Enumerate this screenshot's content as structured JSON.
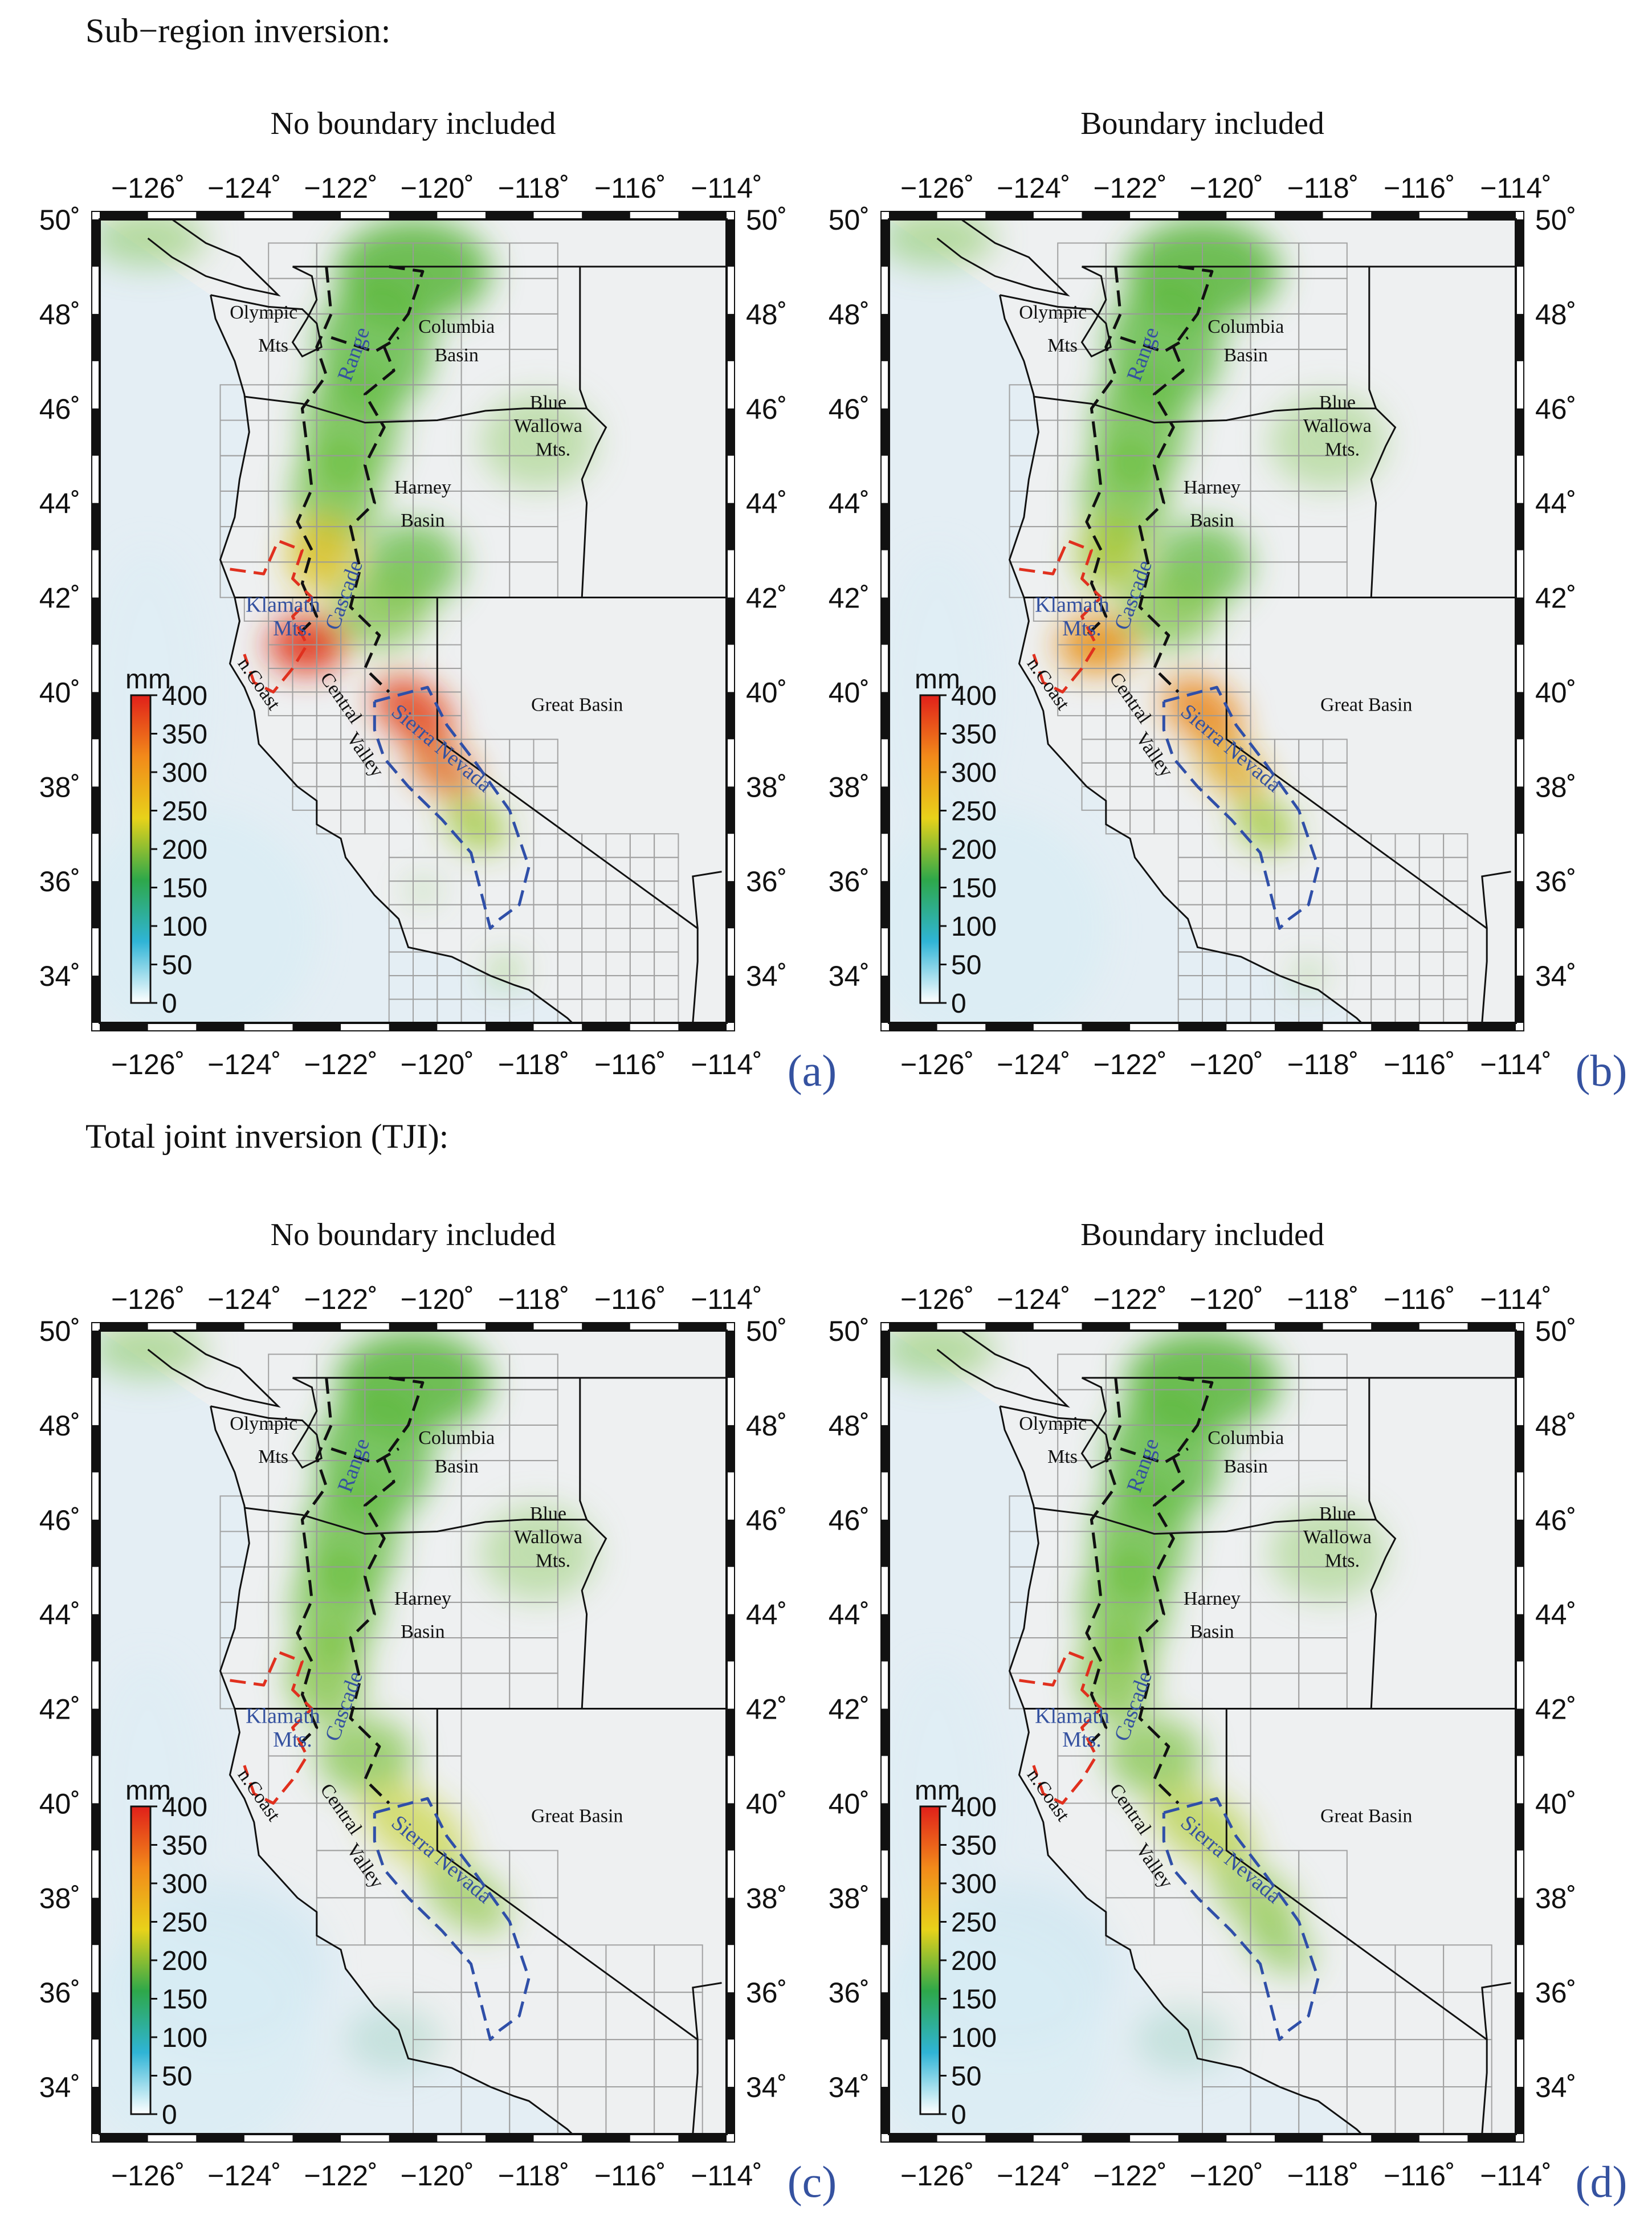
{
  "sections": [
    {
      "title": "Sub−region inversion:"
    },
    {
      "title": "Total joint inversion (TJI):"
    }
  ],
  "panels": [
    {
      "id": "a",
      "label": "(a)",
      "title": "No boundary included",
      "mode": "sub-region",
      "boundary": false
    },
    {
      "id": "b",
      "label": "(b)",
      "title": "Boundary included",
      "mode": "sub-region",
      "boundary": true
    },
    {
      "id": "c",
      "label": "(c)",
      "title": "No boundary included",
      "mode": "tji",
      "boundary": false
    },
    {
      "id": "d",
      "label": "(d)",
      "title": "Boundary included",
      "mode": "tji",
      "boundary": true
    }
  ],
  "axes": {
    "lon_range": [
      -127,
      -114
    ],
    "lat_range": [
      33,
      50
    ],
    "lon_ticks": [
      "−126˚",
      "−124˚",
      "−122˚",
      "−120˚",
      "−118˚",
      "−116˚",
      "−114˚"
    ],
    "lat_ticks": [
      "50˚",
      "48˚",
      "46˚",
      "44˚",
      "42˚",
      "40˚",
      "38˚",
      "36˚",
      "34˚"
    ]
  },
  "colorbar": {
    "unit": "mm",
    "ticks": [
      "400",
      "350",
      "300",
      "250",
      "200",
      "150",
      "100",
      "50",
      "0"
    ],
    "range": [
      0,
      400
    ],
    "colors": [
      "#ffffff",
      "#2fb4d6",
      "#2ea84a",
      "#e8d21a",
      "#f28a1a",
      "#e0201a"
    ]
  },
  "regions": {
    "olympic": [
      "Olympic",
      "Mts"
    ],
    "columbia": [
      "Columbia",
      "Basin"
    ],
    "cascade": "Cascade",
    "range": "Range",
    "blue_wallowa": [
      "Blue",
      "Wallowa",
      "Mts."
    ],
    "harney": [
      "Harney",
      "Basin"
    ],
    "klamath": [
      "Klamath",
      "Mts."
    ],
    "ncoast": "n.Coast",
    "central": "Central",
    "valley": "Valley",
    "sierra": "Sierra Nevada",
    "great_basin": "Great Basin"
  },
  "map_colors": {
    "region_boundary_black": "#111111",
    "klamath_boundary": "#e0301e",
    "sierra_boundary": "#2f4fa8",
    "grid": "#9a9a9a"
  }
}
